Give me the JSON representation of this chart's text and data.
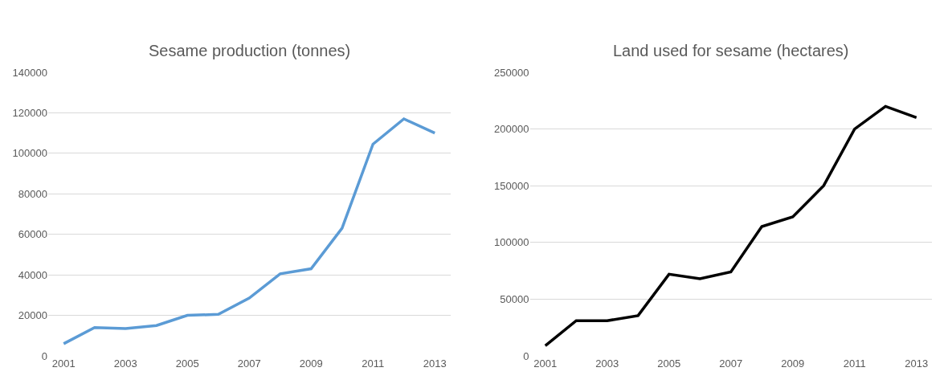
{
  "chart_data": [
    {
      "type": "line",
      "title": "Sesame production (tonnes)",
      "x": [
        2001,
        2002,
        2003,
        2004,
        2005,
        2006,
        2007,
        2008,
        2009,
        2010,
        2011,
        2012,
        2013
      ],
      "xlim": [
        2000.5,
        2013.5
      ],
      "xticks": [
        2001,
        2003,
        2005,
        2007,
        2009,
        2011,
        2013
      ],
      "ylim": [
        0,
        140000
      ],
      "yticks": [
        0,
        20000,
        40000,
        60000,
        80000,
        100000,
        120000,
        140000
      ],
      "grid": "y",
      "series": [
        {
          "color": "#5b9bd5",
          "values": [
            6000,
            14000,
            13500,
            15000,
            20000,
            20500,
            28500,
            40500,
            43000,
            63000,
            104500,
            117000,
            110000
          ]
        }
      ]
    },
    {
      "type": "line",
      "title": "Land used for sesame (hectares)",
      "x": [
        2001,
        2002,
        2003,
        2004,
        2005,
        2006,
        2007,
        2008,
        2009,
        2010,
        2011,
        2012,
        2013
      ],
      "xlim": [
        2000.5,
        2013.5
      ],
      "xticks": [
        2001,
        2003,
        2005,
        2007,
        2009,
        2011,
        2013
      ],
      "ylim": [
        0,
        250000
      ],
      "yticks": [
        0,
        50000,
        100000,
        150000,
        200000,
        250000
      ],
      "grid": "y",
      "series": [
        {
          "color": "#000000",
          "values": [
            9000,
            31000,
            31000,
            35500,
            72000,
            68000,
            74000,
            114000,
            122500,
            150000,
            200000,
            220000,
            210000
          ]
        }
      ]
    }
  ]
}
